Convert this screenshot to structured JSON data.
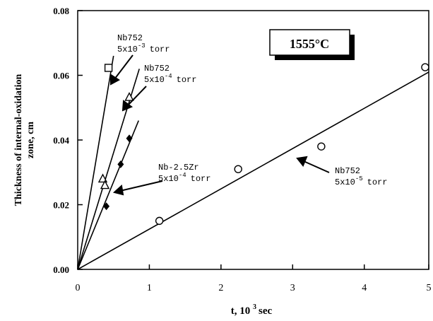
{
  "chart_data": {
    "type": "scatter",
    "xlabel": "t, 10",
    "xlabel_exp": "3",
    "xlabel_unit": "sec",
    "ylabel_line1": "Thickness of internal-oxidation",
    "ylabel_line2": "zone, cm",
    "xlim": [
      0,
      4.9
    ],
    "ylim": [
      0,
      0.08
    ],
    "x_ticks": [
      "0",
      "1",
      "2",
      "3",
      "4",
      "5"
    ],
    "y_ticks": [
      "0.00",
      "0.02",
      "0.04",
      "0.06",
      "0.08"
    ],
    "temperature_box": "1555°C",
    "grid": false,
    "series": [
      {
        "marker": "square",
        "label_line1": "Nb752",
        "label_line2_base": "5x10",
        "label_line2_exp": "-3",
        "label_line2_unit": "torr",
        "points": [
          [
            0.43,
            0.0623
          ]
        ],
        "fit": [
          [
            0,
            0
          ],
          [
            0.5,
            0.066
          ]
        ]
      },
      {
        "marker": "triangle",
        "label_line1": "Nb752",
        "label_line2_base": "5x10",
        "label_line2_exp": "-4",
        "label_line2_unit": "torr",
        "points": [
          [
            0.35,
            0.028
          ],
          [
            0.38,
            0.026
          ],
          [
            0.72,
            0.0532
          ]
        ],
        "fit": [
          [
            0,
            0
          ],
          [
            0.86,
            0.062
          ]
        ]
      },
      {
        "marker": "diamond",
        "label_line1": "Nb-2.5Zr",
        "label_line2_base": "5x10",
        "label_line2_exp": "-4",
        "label_line2_unit": "torr",
        "points": [
          [
            0.4,
            0.0195
          ],
          [
            0.6,
            0.0325
          ],
          [
            0.72,
            0.0405
          ]
        ],
        "fit": [
          [
            0,
            0
          ],
          [
            0.85,
            0.046
          ]
        ]
      },
      {
        "marker": "circle",
        "label_line1": "Nb752",
        "label_line2_base": "5x10",
        "label_line2_exp": "-5",
        "label_line2_unit": "torr",
        "points": [
          [
            1.14,
            0.015
          ],
          [
            2.24,
            0.031
          ],
          [
            3.4,
            0.038
          ],
          [
            4.85,
            0.0625
          ]
        ],
        "fit": [
          [
            0,
            0
          ],
          [
            4.9,
            0.061
          ]
        ]
      }
    ]
  }
}
